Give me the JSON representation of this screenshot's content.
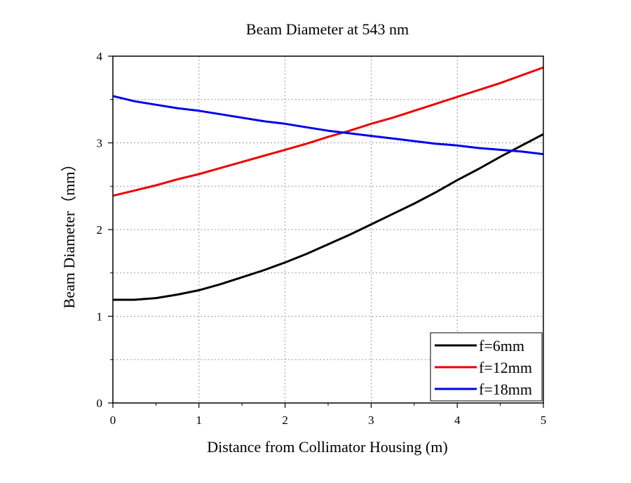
{
  "chart_data": {
    "type": "line",
    "title": "Beam Diameter at 543 nm",
    "xlabel": "Distance from Collimator Housing (m)",
    "ylabel": "Beam Diameter（mm）",
    "xlim": [
      0,
      5
    ],
    "ylim": [
      0,
      4
    ],
    "xticks": [
      "0",
      "1",
      "2",
      "3",
      "4",
      "5"
    ],
    "yticks": [
      "0",
      "1",
      "2",
      "3",
      "4"
    ],
    "grid": true,
    "legend_position": "bottom-right",
    "x": [
      0,
      0.25,
      0.5,
      0.75,
      1,
      1.25,
      1.5,
      1.75,
      2,
      2.25,
      2.5,
      2.75,
      3,
      3.25,
      3.5,
      3.75,
      4,
      4.25,
      4.5,
      4.75,
      5
    ],
    "series": [
      {
        "name": "f=6mm",
        "color": "#000000",
        "values": [
          1.19,
          1.19,
          1.21,
          1.25,
          1.3,
          1.37,
          1.45,
          1.53,
          1.62,
          1.72,
          1.83,
          1.94,
          2.06,
          2.18,
          2.3,
          2.43,
          2.57,
          2.7,
          2.84,
          2.97,
          3.1
        ]
      },
      {
        "name": "f=12mm",
        "color": "#ee0000",
        "values": [
          2.39,
          2.45,
          2.51,
          2.58,
          2.64,
          2.71,
          2.78,
          2.85,
          2.92,
          2.99,
          3.07,
          3.14,
          3.22,
          3.29,
          3.37,
          3.45,
          3.53,
          3.61,
          3.69,
          3.78,
          3.87
        ]
      },
      {
        "name": "f=18mm",
        "color": "#0000ee",
        "values": [
          3.54,
          3.48,
          3.44,
          3.4,
          3.37,
          3.33,
          3.29,
          3.25,
          3.22,
          3.18,
          3.14,
          3.11,
          3.08,
          3.05,
          3.02,
          2.99,
          2.97,
          2.94,
          2.92,
          2.9,
          2.87
        ]
      }
    ]
  }
}
